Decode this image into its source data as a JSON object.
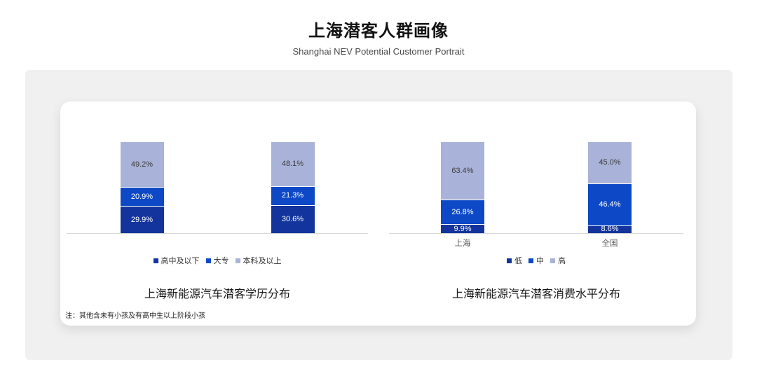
{
  "header": {
    "title": "上海潜客人群画像",
    "subtitle": "Shanghai NEV Potential Customer Portrait"
  },
  "footnote": "注：其他含未有小孩及有高中生以上阶段小孩",
  "colors": {
    "series_dark": "#12349C",
    "series_mid": "#0D49C6",
    "series_light": "#A9B2D8",
    "axis_line": "#D9D9D9",
    "panel_bg": "#F0F0F0",
    "card_bg": "#FFFFFF",
    "label_on_dark": "#FFFFFF",
    "label_on_light": "#3D3D3D"
  },
  "chart_data": [
    {
      "type": "bar",
      "stacked": true,
      "percent_stacked": true,
      "title": "上海新能源汽车潜客学历分布",
      "xlabel": "",
      "ylabel": "",
      "ylim": [
        0,
        100
      ],
      "grid": false,
      "legend_position": "bottom",
      "categories": [
        "",
        ""
      ],
      "show_category_labels": false,
      "series": [
        {
          "name": "高中及以下",
          "color": "#12349C",
          "label_color": "#FFFFFF",
          "values": [
            29.9,
            30.6
          ]
        },
        {
          "name": "大专",
          "color": "#0D49C6",
          "label_color": "#FFFFFF",
          "values": [
            20.9,
            21.3
          ]
        },
        {
          "name": "本科及以上",
          "color": "#A9B2D8",
          "label_color": "#3D3D3D",
          "values": [
            49.2,
            48.1
          ]
        }
      ]
    },
    {
      "type": "bar",
      "stacked": true,
      "percent_stacked": true,
      "title": "上海新能源汽车潜客消费水平分布",
      "xlabel": "",
      "ylabel": "",
      "ylim": [
        0,
        100
      ],
      "grid": false,
      "legend_position": "bottom",
      "categories": [
        "上海",
        "全国"
      ],
      "show_category_labels": true,
      "series": [
        {
          "name": "低",
          "color": "#12349C",
          "label_color": "#FFFFFF",
          "values": [
            9.9,
            8.6
          ]
        },
        {
          "name": "中",
          "color": "#0D49C6",
          "label_color": "#FFFFFF",
          "values": [
            26.8,
            46.4
          ]
        },
        {
          "name": "高",
          "color": "#A9B2D8",
          "label_color": "#3D3D3D",
          "values": [
            63.4,
            45.0
          ]
        }
      ]
    }
  ]
}
